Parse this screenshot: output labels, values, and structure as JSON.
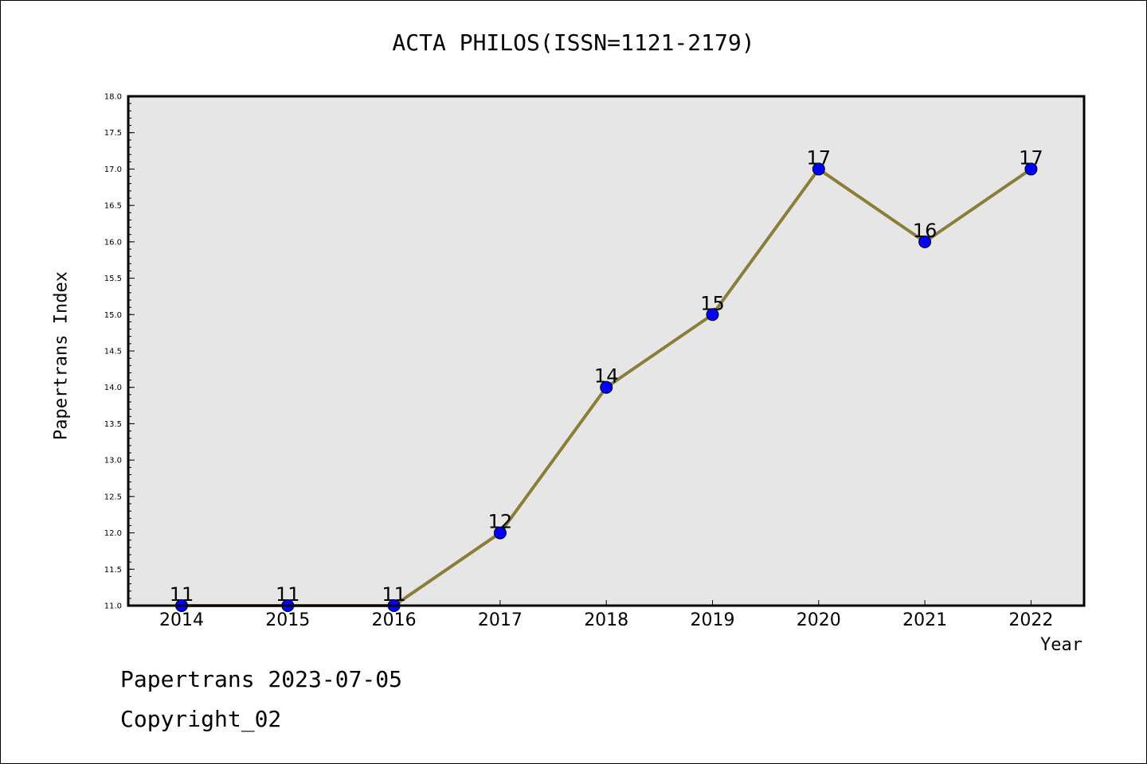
{
  "chart_data": {
    "type": "line",
    "title": "ACTA PHILOS(ISSN=1121-2179)",
    "xlabel": "Year",
    "ylabel": "Papertrans Index",
    "categories": [
      "2014",
      "2015",
      "2016",
      "2017",
      "2018",
      "2019",
      "2020",
      "2021",
      "2022"
    ],
    "values": [
      11,
      11,
      11,
      12,
      14,
      15,
      17,
      16,
      17
    ],
    "data_labels": [
      "11",
      "11",
      "11",
      "12",
      "14",
      "15",
      "17",
      "16",
      "17"
    ],
    "ylim": [
      11.0,
      18.0
    ],
    "yticks": [
      "11.0",
      "11.5",
      "12.0",
      "12.5",
      "13.0",
      "13.5",
      "14.0",
      "14.5",
      "15.0",
      "15.5",
      "16.0",
      "16.5",
      "17.0",
      "17.5",
      "18.0"
    ],
    "grid": false,
    "line_color": "#8B7D3A",
    "marker_color": "#0000FF",
    "plot_background": "#E6E6E6"
  },
  "footer": {
    "line1": "Papertrans 2023-07-05",
    "line2": "Copyright_02"
  }
}
